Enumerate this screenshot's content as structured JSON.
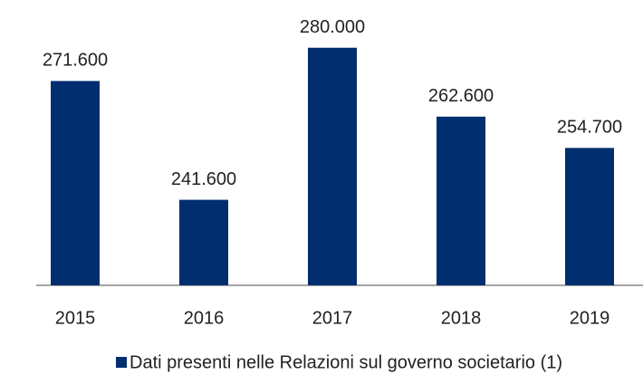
{
  "chart_data": {
    "type": "bar",
    "categories": [
      "2015",
      "2016",
      "2017",
      "2018",
      "2019"
    ],
    "series": [
      {
        "name": "Dati presenti nelle Relazioni sul governo societario (1)",
        "color": "#002e6e",
        "values": [
          271600,
          241600,
          280000,
          262600,
          254700
        ],
        "value_labels": [
          "271.600",
          "241.600",
          "280.000",
          "262.600",
          "254.700"
        ]
      }
    ],
    "ylim": [
      220000,
      290000
    ]
  }
}
